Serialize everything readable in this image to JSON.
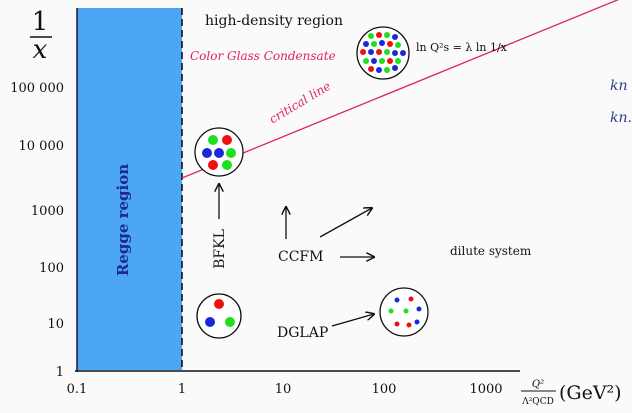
{
  "axes": {
    "y_label_numerator": "1",
    "y_label_denominator": "x",
    "x_label_num": "Q²",
    "x_label_den": "Λ²QCD",
    "x_label_unit": "(GeV²)",
    "x_ticks": [
      "0.1",
      "1",
      "10",
      "100",
      "1000"
    ],
    "y_ticks": [
      "1",
      "10",
      "100",
      "1000",
      "10 000",
      "100 000"
    ]
  },
  "regions": {
    "regge": "Regge region",
    "high_density": "high-density region",
    "cgc": "Color Glass Condensate",
    "critical_line": "critical line",
    "saturation_formula": "ln Q²s = λ ln 1/x",
    "dilute": "dilute system"
  },
  "evolution": {
    "bfkl": "BFKL",
    "ccfm": "CCFM",
    "dglap": "DGLAP"
  },
  "right_edge": {
    "k1": "kn",
    "k2": "kn."
  },
  "colors": {
    "regge_fill": "#4da6f5",
    "critical_line": "#e0206a",
    "cgc_text": "#e0206a",
    "right_text": "#2a3f8f"
  }
}
